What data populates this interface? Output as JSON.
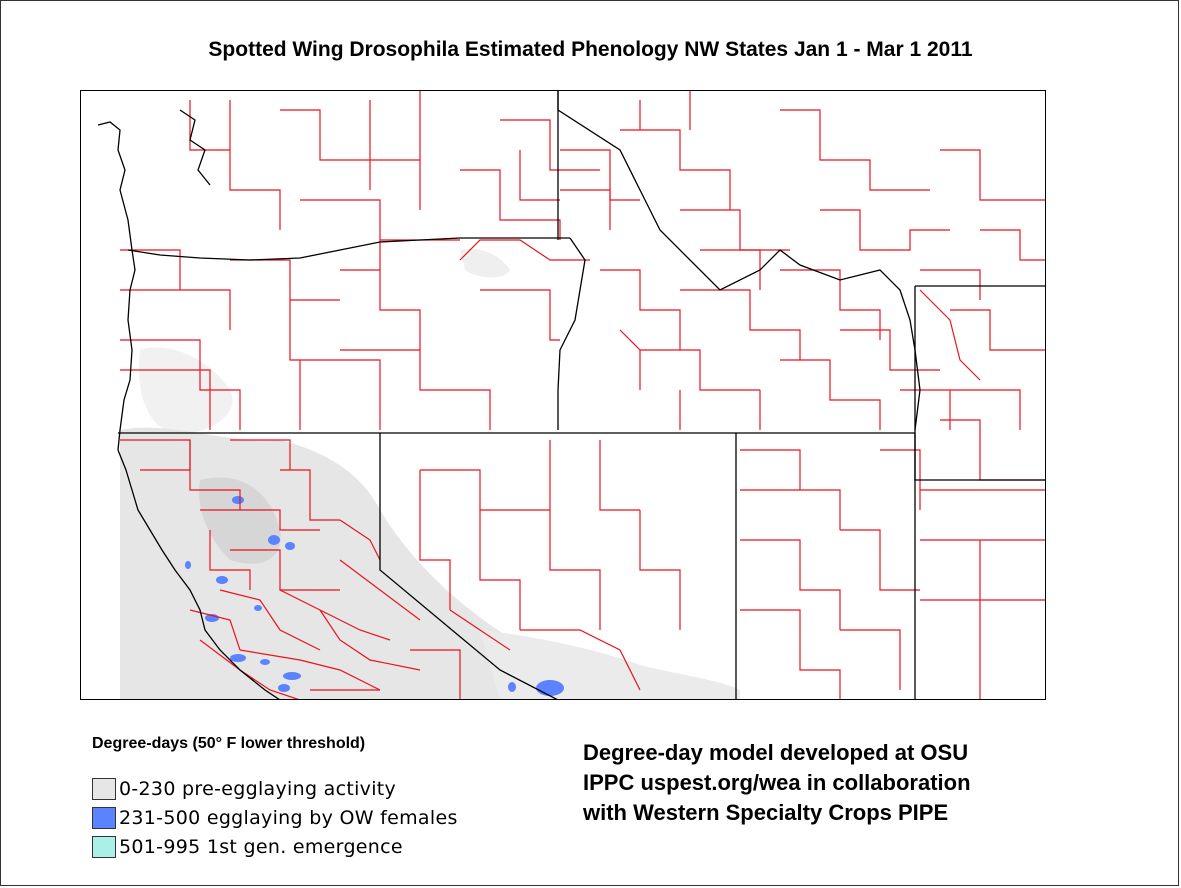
{
  "title": "Spotted Wing Drosophila Estimated Phenology NW States Jan 1 - Mar 1 2011",
  "legend": {
    "heading": "Degree-days (50° F lower threshold)",
    "items": [
      {
        "label": "0-230  pre-egglaying activity",
        "color": "#e6e6e6"
      },
      {
        "label": "231-500 egglaying by OW females",
        "color": "#5b82ff"
      },
      {
        "label": "501-995  1st gen. emergence",
        "color": "#aaf0e6"
      }
    ]
  },
  "credit": {
    "line1": "Degree-day model developed at OSU",
    "line2": "IPPC uspest.org/wea in collaboration",
    "line3": "with Western Specialty Crops PIPE"
  },
  "colors": {
    "county_border": "#e8141e",
    "state_border": "#000000",
    "low_dd": "#e6e6e6",
    "mid_dd": "#5b82ff",
    "high_dd": "#aaf0e6"
  }
}
